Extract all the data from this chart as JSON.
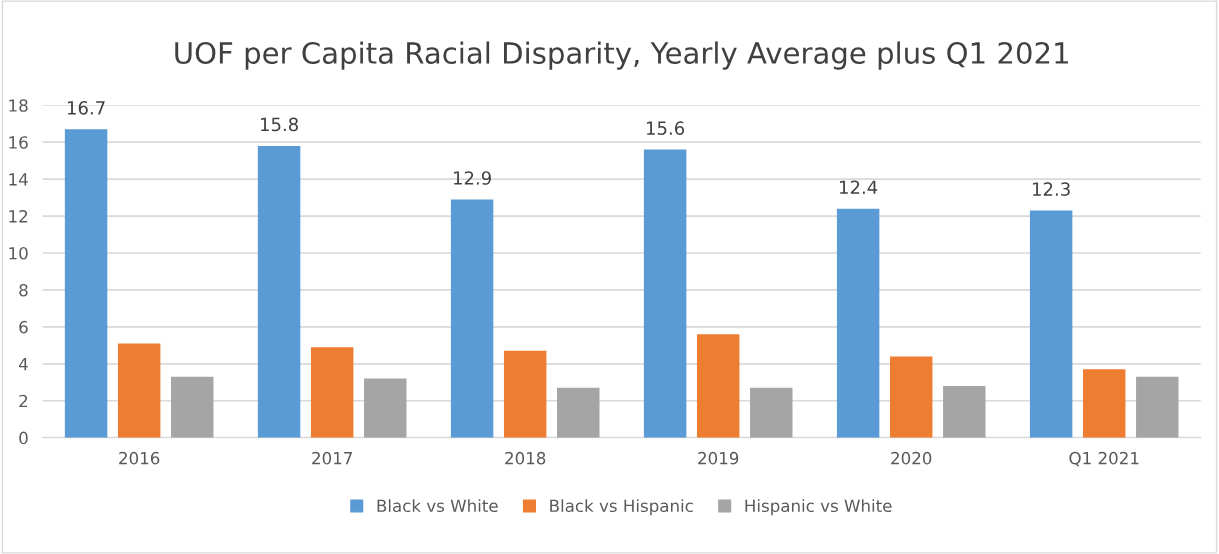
{
  "chart_data": {
    "type": "bar",
    "title": "UOF per Capita Racial Disparity, Yearly Average plus Q1 2021",
    "categories": [
      "2016",
      "2017",
      "2018",
      "2019",
      "2020",
      "Q1 2021"
    ],
    "series": [
      {
        "name": "Black vs White",
        "color": "#5b9bd5",
        "values": [
          16.7,
          15.8,
          12.9,
          15.6,
          12.4,
          12.3
        ],
        "value_labels": [
          "16.7",
          "15.8",
          "12.9",
          "15.6",
          "12.4",
          "12.3"
        ]
      },
      {
        "name": "Black vs Hispanic",
        "color": "#ed7d31",
        "values": [
          5.1,
          4.9,
          4.7,
          5.6,
          4.4,
          3.7
        ]
      },
      {
        "name": "Hispanic vs White",
        "color": "#a5a5a5",
        "values": [
          3.3,
          3.2,
          2.7,
          2.7,
          2.8,
          3.3
        ]
      }
    ],
    "ylim": [
      0,
      18
    ],
    "yticks": [
      0,
      2,
      4,
      6,
      8,
      10,
      12,
      14,
      16,
      18
    ],
    "grid": "y",
    "legend": "bottom"
  }
}
